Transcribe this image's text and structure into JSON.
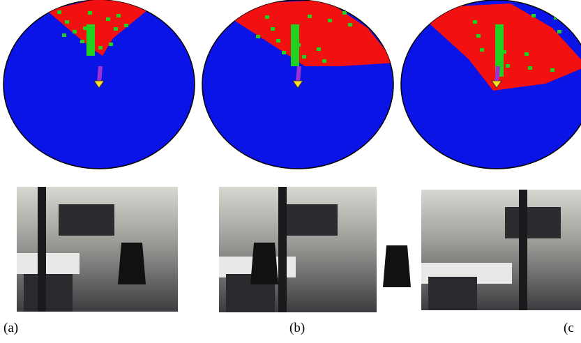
{
  "panels": [
    {
      "label": "(a)"
    },
    {
      "label": "(b)"
    },
    {
      "label": "(c"
    }
  ]
}
